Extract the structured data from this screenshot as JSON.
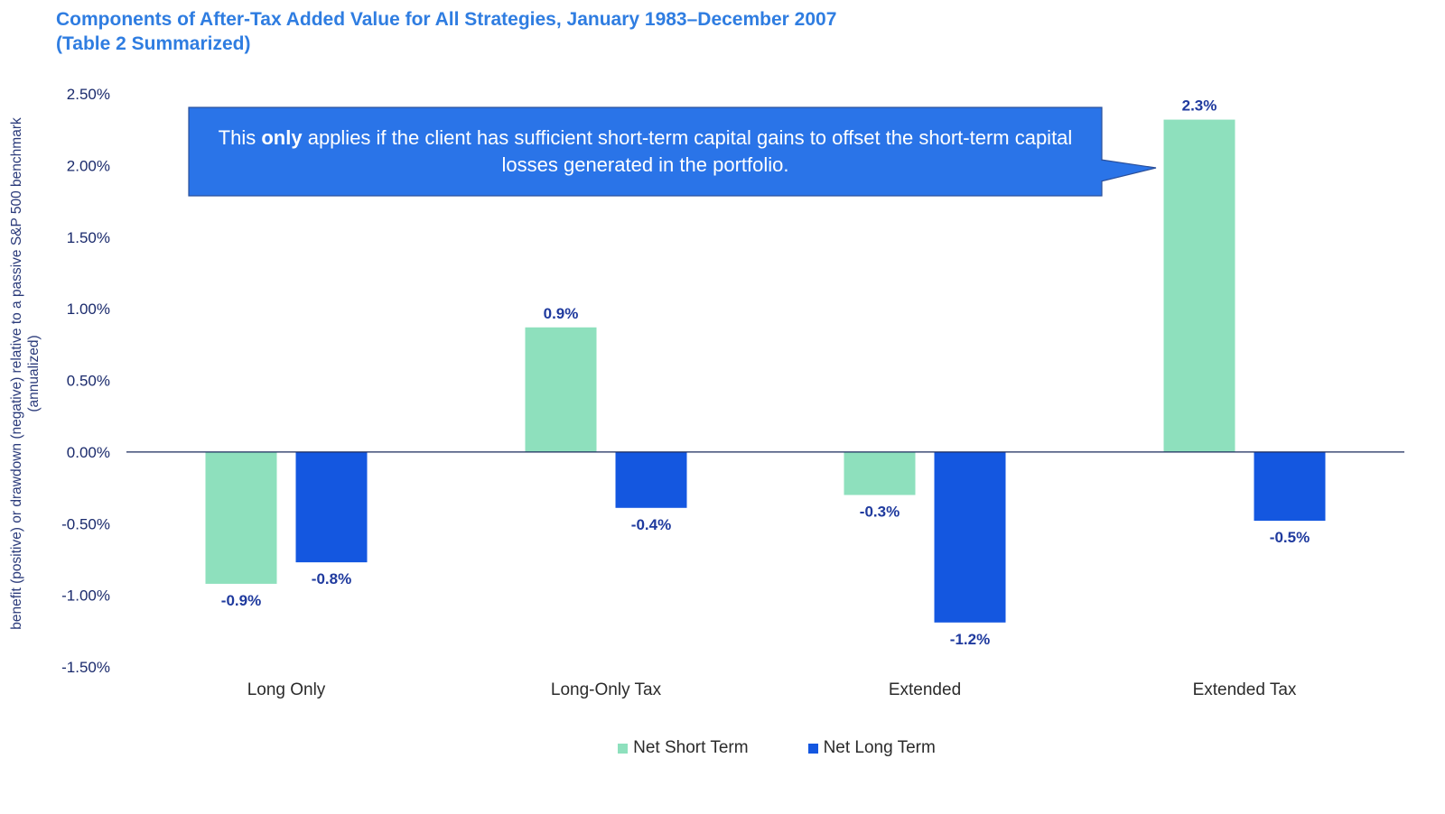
{
  "title_line1": "Components of After-Tax Added Value for All Strategies, January 1983–December 2007",
  "title_line2": "(Table 2 Summarized)",
  "callout": {
    "before": "This ",
    "bold": "only",
    "after": " applies if the client has sufficient short-term capital gains to offset the short-term capital losses generated in the portfolio."
  },
  "colors": {
    "title": "#2f7de1",
    "net_short_term": "#8ee0bd",
    "net_long_term": "#1457e0",
    "callout_fill": "#2a74e8",
    "data_label": "#1f3a9e"
  },
  "chart_data": {
    "type": "bar",
    "categories": [
      "Long Only",
      "Long-Only Tax",
      "Extended",
      "Extended Tax"
    ],
    "series": [
      {
        "name": "Net Short Term",
        "values": [
          -0.92,
          0.87,
          -0.3,
          2.32
        ],
        "labels": [
          "-0.9%",
          "0.9%",
          "-0.3%",
          "2.3%"
        ]
      },
      {
        "name": "Net Long Term",
        "values": [
          -0.77,
          -0.39,
          -1.19,
          -0.48
        ],
        "labels": [
          "-0.8%",
          "-0.4%",
          "-1.2%",
          "-0.5%"
        ]
      }
    ],
    "ylabel": "benefit (positive) or drawdown (negative) relative to a passive S&P 500 benchmark (annualized)",
    "ylim": [
      -1.5,
      2.5
    ],
    "yticks": [
      2.5,
      2.0,
      1.5,
      1.0,
      0.5,
      0.0,
      -0.5,
      -1.0,
      -1.5
    ],
    "ytick_labels": [
      "2.50%",
      "2.00%",
      "1.50%",
      "1.00%",
      "0.50%",
      "0.00%",
      "-0.50%",
      "-1.00%",
      "-1.50%"
    ],
    "grid": false,
    "legend_position": "bottom-center"
  }
}
